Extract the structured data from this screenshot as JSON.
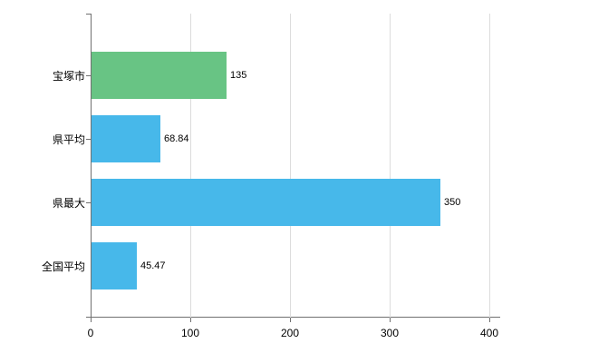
{
  "chart_data": {
    "type": "bar",
    "orientation": "horizontal",
    "title": "",
    "xlabel": "",
    "ylabel": "",
    "categories": [
      "宝塚市",
      "県平均",
      "県最大",
      "全国平均"
    ],
    "values": [
      135,
      68.84,
      350,
      45.47
    ],
    "value_labels": [
      "135",
      "68.84",
      "350",
      "45.47"
    ],
    "bar_colors": [
      "#68c484",
      "#47b8ea",
      "#47b8ea",
      "#47b8ea"
    ],
    "xlim": [
      0,
      410
    ],
    "x_ticks": [
      0,
      100,
      200,
      300,
      400
    ],
    "x_tick_labels": [
      "0",
      "100",
      "200",
      "300",
      "400"
    ],
    "grid": true,
    "legend": "none"
  },
  "colors": {
    "axis": "#707070",
    "gridline": "#dcdcdc",
    "background": "#ffffff",
    "text": "#000000"
  }
}
